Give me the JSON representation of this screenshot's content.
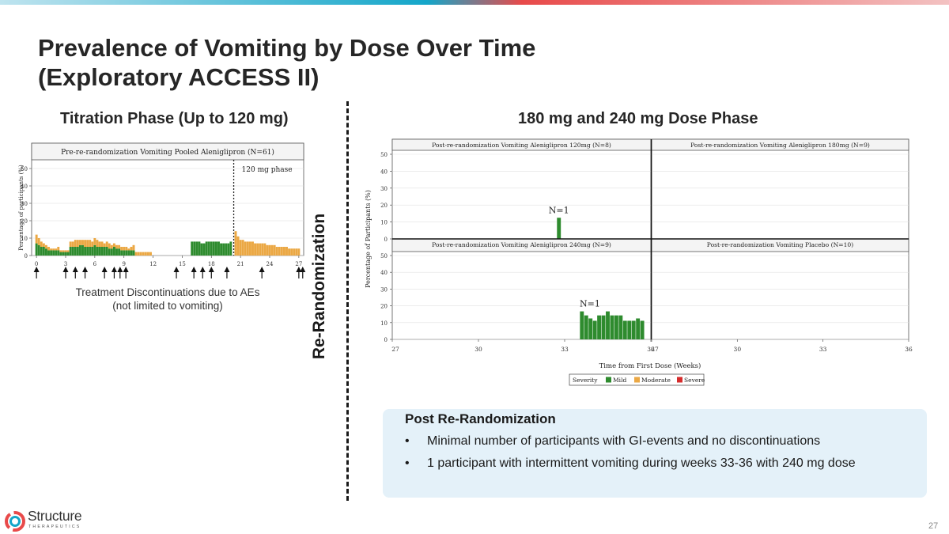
{
  "slide": {
    "title_line1": "Prevalence of Vomiting by Dose Over Time",
    "title_line2": "(Exploratory ACCESS II)",
    "page_number": "27",
    "colors": {
      "mild": "#2e8b2e",
      "moderate": "#eba844",
      "severe": "#d62c2c",
      "box": "#e4f1f9"
    }
  },
  "left": {
    "section_title": "Titration Phase (Up to 120 mg)",
    "discontinuation_line1": "Treatment Discontinuations due to AEs",
    "discontinuation_line2": "(not limited to vomiting)",
    "arrow_icon": "arrow-up-icon"
  },
  "divider_label": "Re-Randomization",
  "right": {
    "section_title": "180 mg and 240 mg Dose Phase"
  },
  "post_box": {
    "title": "Post Re-Randomization",
    "bullets": [
      "Minimal number of participants with GI-events and no discontinuations",
      "1 participant with intermittent vomiting during weeks 33-36 with 240 mg dose"
    ]
  },
  "logo": {
    "name": "Structure",
    "sub": "THERAPEUTICS",
    "icon": "structure-logo-icon"
  },
  "chart_data": [
    {
      "type": "bar",
      "stacked": true,
      "title": "Pre-re-randomization Vomiting Pooled Aleniglipron (N=61)",
      "ylabel": "Percentage of participants (%)",
      "xlabel": "",
      "ylim": [
        0,
        55
      ],
      "yticks": [
        0,
        10,
        20,
        30,
        40,
        50
      ],
      "xlim": [
        -0.5,
        27.5
      ],
      "xticks": [
        0,
        3,
        6,
        9,
        12,
        15,
        18,
        21,
        24,
        27
      ],
      "annotation": "120 mg phase",
      "phase_boundary_week": 20.3,
      "discontinuation_weeks": [
        0,
        3,
        4,
        5,
        7,
        8,
        8.6,
        9.2,
        14.4,
        16.2,
        17.1,
        18,
        19.6,
        23.2,
        27,
        27.4
      ],
      "series": [
        {
          "name": "Mild",
          "color": "#2e8b2e",
          "x": [
            0,
            0.25,
            0.5,
            0.75,
            1,
            1.25,
            1.5,
            1.75,
            2,
            2.25,
            2.5,
            2.75,
            3,
            3.25,
            3.5,
            3.75,
            4,
            4.25,
            4.5,
            4.75,
            5,
            5.25,
            5.5,
            5.75,
            6,
            6.25,
            6.5,
            6.75,
            7,
            7.25,
            7.5,
            7.75,
            8,
            8.25,
            8.5,
            8.75,
            9,
            9.25,
            9.5,
            9.75,
            10,
            16,
            16.25,
            16.5,
            16.75,
            17,
            17.25,
            17.5,
            17.75,
            18,
            18.25,
            18.5,
            18.75,
            19,
            19.25,
            19.5,
            19.75,
            20
          ],
          "values": [
            7,
            6,
            5,
            5,
            4,
            3,
            3,
            3,
            3,
            3,
            2,
            2,
            2,
            2,
            5,
            5,
            5,
            5,
            6,
            6,
            5,
            5,
            5,
            5,
            6,
            5,
            5,
            5,
            5,
            5,
            4,
            4,
            5,
            4,
            4,
            3,
            3,
            3,
            3,
            3,
            3,
            8,
            8,
            8,
            8,
            7,
            7,
            8,
            8,
            8,
            8,
            8,
            8,
            7,
            7,
            7,
            7,
            8
          ]
        },
        {
          "name": "Moderate",
          "color": "#eba844",
          "x": [
            0,
            0.25,
            0.5,
            0.75,
            1,
            1.25,
            1.5,
            1.75,
            2,
            2.25,
            2.5,
            2.75,
            3,
            3.25,
            3.5,
            3.75,
            4,
            4.25,
            4.5,
            4.75,
            5,
            5.25,
            5.5,
            5.75,
            6,
            6.25,
            6.5,
            6.75,
            7,
            7.25,
            7.5,
            7.75,
            8,
            8.25,
            8.5,
            8.75,
            9,
            9.25,
            9.5,
            9.75,
            10,
            10.25,
            10.5,
            10.75,
            11,
            11.25,
            11.5,
            11.75,
            20.5,
            20.75,
            21,
            21.25,
            21.5,
            21.75,
            22,
            22.25,
            22.5,
            22.75,
            23,
            23.25,
            23.5,
            23.75,
            24,
            24.25,
            24.5,
            24.75,
            25,
            25.25,
            25.5,
            25.75,
            26,
            26.25,
            26.5,
            26.75,
            27
          ],
          "values": [
            5,
            4,
            3,
            2,
            2,
            2,
            1,
            1,
            1,
            2,
            1,
            1,
            1,
            1,
            3,
            3,
            4,
            4,
            3,
            3,
            4,
            4,
            4,
            3,
            4,
            4,
            3,
            3,
            2,
            3,
            3,
            2,
            2,
            2,
            2,
            2,
            2,
            2,
            1,
            2,
            3,
            2,
            2,
            2,
            2,
            2,
            2,
            2,
            14,
            11,
            9,
            9,
            8,
            8,
            8,
            8,
            7,
            7,
            7,
            7,
            7,
            6,
            6,
            6,
            6,
            5,
            5,
            5,
            5,
            5,
            4,
            4,
            4,
            4,
            4
          ]
        }
      ]
    },
    {
      "type": "bar",
      "title": "Post-re-randomization Vomiting Aleniglipron 120mg (N=8)",
      "ylabel": "Percentage of Participants (%)",
      "ylim": [
        0,
        50
      ],
      "yticks": [
        0,
        10,
        20,
        30,
        40,
        50
      ],
      "xlim": [
        27,
        36
      ],
      "xticks": [
        27,
        30,
        33,
        36
      ],
      "annotation": "N=1",
      "series": [
        {
          "name": "Mild",
          "color": "#2e8b2e",
          "x": [
            32.8
          ],
          "values": [
            12.5
          ]
        }
      ]
    },
    {
      "type": "bar",
      "title": "Post-re-randomization Vomiting Aleniglipron 180mg (N=9)",
      "ylim": [
        0,
        50
      ],
      "yticks": [
        0,
        10,
        20,
        30,
        40,
        50
      ],
      "xlim": [
        27,
        36
      ],
      "xticks": [
        27,
        30,
        33,
        36
      ],
      "series": [
        {
          "name": "Mild",
          "color": "#2e8b2e",
          "x": [],
          "values": []
        }
      ]
    },
    {
      "type": "bar",
      "title": "Post-re-randomization Vomiting Aleniglipron 240mg (N=9)",
      "ylim": [
        0,
        50
      ],
      "yticks": [
        0,
        10,
        20,
        30,
        40,
        50
      ],
      "xlim": [
        27,
        36
      ],
      "xticks": [
        27,
        30,
        33,
        36
      ],
      "xlabel": "Time from First Dose (Weeks)",
      "annotation": "N=1",
      "series": [
        {
          "name": "Mild",
          "color": "#2e8b2e",
          "x": [
            33.6,
            33.75,
            33.9,
            34.05,
            34.2,
            34.35,
            34.5,
            34.65,
            34.8,
            34.95,
            35.1,
            35.25,
            35.4,
            35.55,
            35.7
          ],
          "values": [
            16.7,
            14.3,
            12.5,
            11.1,
            14.3,
            14.3,
            16.7,
            14.3,
            14.3,
            14.3,
            11.1,
            11.1,
            11.1,
            12.5,
            11.1
          ]
        }
      ]
    },
    {
      "type": "bar",
      "title": "Post-re-randomization Vomiting Placebo (N=10)",
      "ylim": [
        0,
        50
      ],
      "yticks": [
        0,
        10,
        20,
        30,
        40,
        50
      ],
      "xlim": [
        27,
        36
      ],
      "xticks": [
        27,
        30,
        33,
        36
      ],
      "series": [
        {
          "name": "Mild",
          "color": "#2e8b2e",
          "x": [],
          "values": []
        }
      ]
    }
  ],
  "legend": {
    "title": "Severity",
    "items": [
      "Mild",
      "Moderate",
      "Severe"
    ]
  }
}
